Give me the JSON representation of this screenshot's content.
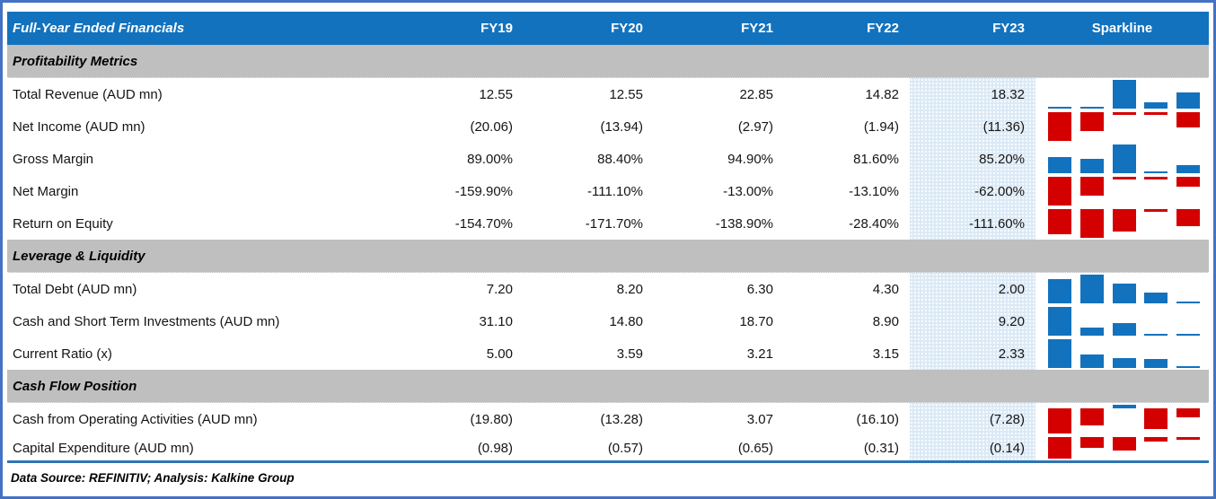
{
  "header": {
    "title": "Full-Year Ended Financials",
    "columns": [
      "FY19",
      "FY20",
      "FY21",
      "FY22",
      "FY23"
    ],
    "sparkline_label": "Sparkline"
  },
  "colors": {
    "header_bg": "#1272BE",
    "section_bg": "#BFBFBF",
    "fy23_highlight_bg": "#DBE9F6",
    "positive_bar": "#1272BE",
    "negative_bar": "#D40000",
    "frame_border": "#4472C4",
    "bottom_rule": "#2E75B6"
  },
  "sections": [
    {
      "title": "Profitability Metrics",
      "rows": [
        {
          "label": "Total Revenue (AUD mn)",
          "display": [
            "12.55",
            "12.55",
            "22.85",
            "14.82",
            "18.32"
          ],
          "values": [
            12.55,
            12.55,
            22.85,
            14.82,
            18.32
          ]
        },
        {
          "label": "Net Income (AUD mn)",
          "display": [
            "(20.06)",
            "(13.94)",
            "(2.97)",
            "(1.94)",
            "(11.36)"
          ],
          "values": [
            -20.06,
            -13.94,
            -2.97,
            -1.94,
            -11.36
          ]
        },
        {
          "label": "Gross Margin",
          "display": [
            "89.00%",
            "88.40%",
            "94.90%",
            "81.60%",
            "85.20%"
          ],
          "values": [
            89.0,
            88.4,
            94.9,
            81.6,
            85.2
          ]
        },
        {
          "label": "Net Margin",
          "display": [
            "-159.90%",
            "-111.10%",
            "-13.00%",
            "-13.10%",
            "-62.00%"
          ],
          "values": [
            -159.9,
            -111.1,
            -13.0,
            -13.1,
            -62.0
          ]
        },
        {
          "label": "Return on Equity",
          "display": [
            "-154.70%",
            "-171.70%",
            "-138.90%",
            "-28.40%",
            "-111.60%"
          ],
          "values": [
            -154.7,
            -171.7,
            -138.9,
            -28.4,
            -111.6
          ]
        }
      ]
    },
    {
      "title": "Leverage & Liquidity",
      "rows": [
        {
          "label": "Total Debt (AUD mn)",
          "display": [
            "7.20",
            "8.20",
            "6.30",
            "4.30",
            "2.00"
          ],
          "values": [
            7.2,
            8.2,
            6.3,
            4.3,
            2.0
          ]
        },
        {
          "label": "Cash and Short Term Investments (AUD mn)",
          "display": [
            "31.10",
            "14.80",
            "18.70",
            "8.90",
            "9.20"
          ],
          "values": [
            31.1,
            14.8,
            18.7,
            8.9,
            9.2
          ]
        },
        {
          "label": "Current Ratio (x)",
          "display": [
            "5.00",
            "3.59",
            "3.21",
            "3.15",
            "2.33"
          ],
          "values": [
            5.0,
            3.59,
            3.21,
            3.15,
            2.33
          ]
        }
      ]
    },
    {
      "title": "Cash Flow Position",
      "rows": [
        {
          "label": "Cash from Operating Activities (AUD mn)",
          "display": [
            "(19.80)",
            "(13.28)",
            "3.07",
            "(16.10)",
            "(7.28)"
          ],
          "values": [
            -19.8,
            -13.28,
            3.07,
            -16.1,
            -7.28
          ]
        },
        {
          "label": "Capital Expenditure (AUD mn)",
          "display": [
            "(0.98)",
            "(0.57)",
            "(0.65)",
            "(0.31)",
            "(0.14)"
          ],
          "values": [
            -0.98,
            -0.57,
            -0.65,
            -0.31,
            -0.14
          ]
        }
      ]
    }
  ],
  "footer": {
    "text": "Data Source: REFINITIV; Analysis: Kalkine Group"
  },
  "chart_data": {
    "type": "table",
    "title": "Full-Year Ended Financials",
    "columns": [
      "Metric",
      "FY19",
      "FY20",
      "FY21",
      "FY22",
      "FY23",
      "Sparkline"
    ],
    "sparkline_type": "bar",
    "sparkline_scaling": "min-max per row; blue bars for positive values, red bars for negative values",
    "highlighted_column": "FY23",
    "sections": [
      {
        "name": "Profitability Metrics",
        "rows": [
          {
            "metric": "Total Revenue (AUD mn)",
            "values": [
              12.55,
              12.55,
              22.85,
              14.82,
              18.32
            ]
          },
          {
            "metric": "Net Income (AUD mn)",
            "values": [
              -20.06,
              -13.94,
              -2.97,
              -1.94,
              -11.36
            ]
          },
          {
            "metric": "Gross Margin (%)",
            "values": [
              89.0,
              88.4,
              94.9,
              81.6,
              85.2
            ]
          },
          {
            "metric": "Net Margin (%)",
            "values": [
              -159.9,
              -111.1,
              -13.0,
              -13.1,
              -62.0
            ]
          },
          {
            "metric": "Return on Equity (%)",
            "values": [
              -154.7,
              -171.7,
              -138.9,
              -28.4,
              -111.6
            ]
          }
        ]
      },
      {
        "name": "Leverage & Liquidity",
        "rows": [
          {
            "metric": "Total Debt (AUD mn)",
            "values": [
              7.2,
              8.2,
              6.3,
              4.3,
              2.0
            ]
          },
          {
            "metric": "Cash and Short Term Investments (AUD mn)",
            "values": [
              31.1,
              14.8,
              18.7,
              8.9,
              9.2
            ]
          },
          {
            "metric": "Current Ratio (x)",
            "values": [
              5.0,
              3.59,
              3.21,
              3.15,
              2.33
            ]
          }
        ]
      },
      {
        "name": "Cash Flow Position",
        "rows": [
          {
            "metric": "Cash from Operating Activities (AUD mn)",
            "values": [
              -19.8,
              -13.28,
              3.07,
              -16.1,
              -7.28
            ]
          },
          {
            "metric": "Capital Expenditure (AUD mn)",
            "values": [
              -0.98,
              -0.57,
              -0.65,
              -0.31,
              -0.14
            ]
          }
        ]
      }
    ]
  }
}
